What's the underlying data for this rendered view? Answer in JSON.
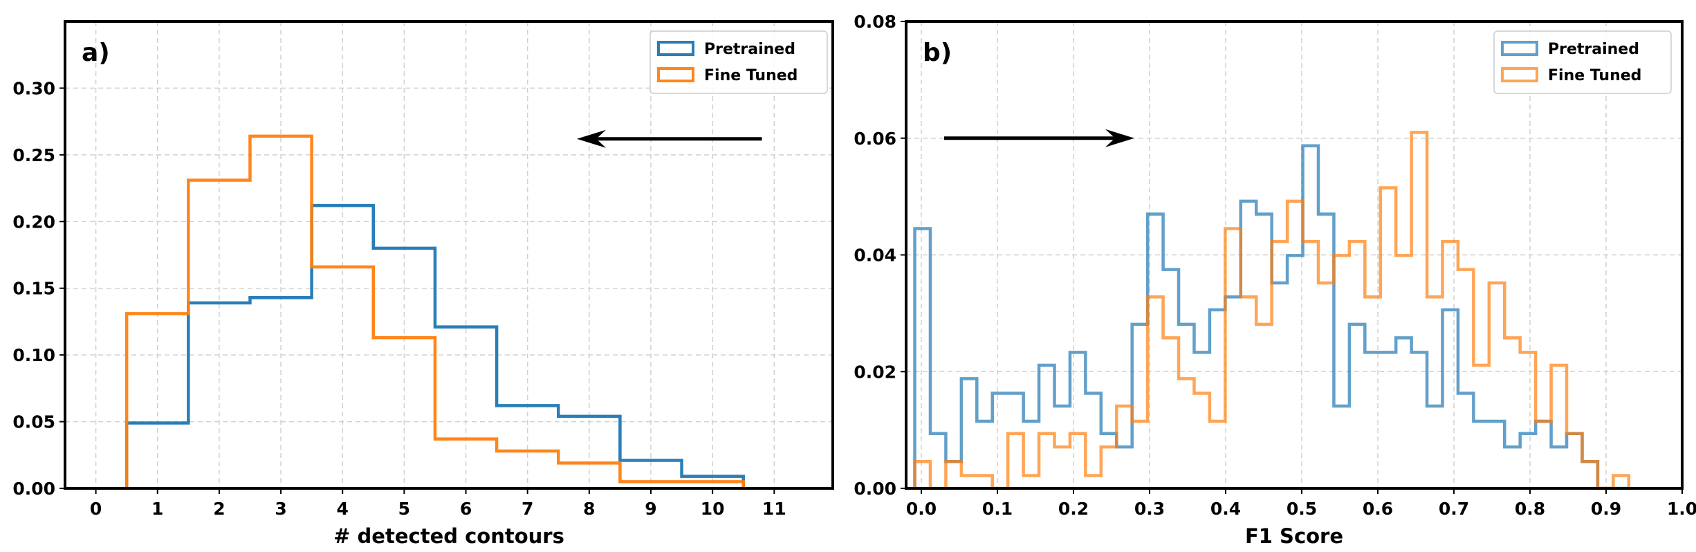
{
  "chart_data": [
    {
      "type": "histogram-step",
      "panel_label": "a)",
      "xlabel": "# detected contours",
      "ylabel": "",
      "xlim": [
        -0.5,
        11.95
      ],
      "ylim": [
        0,
        0.35
      ],
      "xticks": [
        0,
        1,
        2,
        3,
        4,
        5,
        6,
        7,
        8,
        9,
        10,
        11
      ],
      "xtick_labels": [
        "0",
        "1",
        "2",
        "3",
        "4",
        "5",
        "6",
        "7",
        "8",
        "9",
        "10",
        "11"
      ],
      "yticks": [
        0,
        0.05,
        0.1,
        0.15,
        0.2,
        0.25,
        0.3
      ],
      "ytick_labels": [
        "0.00",
        "0.05",
        "0.10",
        "0.15",
        "0.20",
        "0.25",
        "0.30"
      ],
      "grid": true,
      "legend_position": "top-right",
      "bin_start": 0.5,
      "bin_width": 1,
      "series": [
        {
          "name": "Pretrained",
          "color": "#1f77b4",
          "alpha": 0.95,
          "values": [
            0.049,
            0.139,
            0.143,
            0.212,
            0.18,
            0.121,
            0.062,
            0.054,
            0.021,
            0.009
          ]
        },
        {
          "name": "Fine Tuned",
          "color": "#ff7f0e",
          "alpha": 0.95,
          "values": [
            0.131,
            0.231,
            0.264,
            0.166,
            0.113,
            0.037,
            0.028,
            0.019,
            0.005,
            0.005
          ]
        }
      ],
      "annotation_arrow": {
        "from": [
          10.8,
          0.262
        ],
        "to": [
          7.8,
          0.262
        ],
        "direction": "left"
      }
    },
    {
      "type": "histogram-step",
      "panel_label": "b)",
      "xlabel": "F1 Score",
      "ylabel": "",
      "xlim": [
        -0.02,
        1.0
      ],
      "ylim": [
        0,
        0.08
      ],
      "xticks": [
        0,
        0.1,
        0.2,
        0.3,
        0.4,
        0.5,
        0.6,
        0.7,
        0.8,
        0.9,
        1.0
      ],
      "xtick_labels": [
        "0.0",
        "0.1",
        "0.2",
        "0.3",
        "0.4",
        "0.5",
        "0.6",
        "0.7",
        "0.8",
        "0.9",
        "1.0"
      ],
      "yticks": [
        0,
        0.02,
        0.04,
        0.06,
        0.08
      ],
      "ytick_labels": [
        "0.00",
        "0.02",
        "0.04",
        "0.06",
        "0.08"
      ],
      "grid": true,
      "legend_position": "top-right",
      "bin_start": -0.0086,
      "bin_width": 0.0204,
      "series": [
        {
          "name": "Pretrained",
          "color": "#1f77b4",
          "alpha": 0.7,
          "values": [
            0.0445,
            0.0094,
            0.0046,
            0.0188,
            0.0115,
            0.0163,
            0.0163,
            0.0115,
            0.0211,
            0.0141,
            0.0233,
            0.0163,
            0.0094,
            0.0071,
            0.0281,
            0.047,
            0.0375,
            0.0281,
            0.0233,
            0.0306,
            0.0328,
            0.0492,
            0.047,
            0.0352,
            0.0399,
            0.0587,
            0.047,
            0.0141,
            0.0281,
            0.0233,
            0.0233,
            0.0258,
            0.0233,
            0.0141,
            0.0306,
            0.0163,
            0.0115,
            0.0115,
            0.0071,
            0.0094,
            0.0115,
            0.0071,
            0.0094,
            0.0046,
            0,
            0
          ]
        },
        {
          "name": "Fine Tuned",
          "color": "#ff7f0e",
          "alpha": 0.7,
          "values": [
            0.0046,
            0,
            0.0046,
            0.0022,
            0.0022,
            0,
            0.0094,
            0.0022,
            0.0094,
            0.0071,
            0.0094,
            0.0022,
            0.0071,
            0.0141,
            0.0115,
            0.0328,
            0.0258,
            0.0188,
            0.0163,
            0.0115,
            0.0445,
            0.0328,
            0.0281,
            0.0423,
            0.0492,
            0.0423,
            0.0352,
            0.0399,
            0.0423,
            0.0328,
            0.0515,
            0.0399,
            0.061,
            0.0328,
            0.0423,
            0.0375,
            0.0211,
            0.0352,
            0.0258,
            0.0233,
            0.0115,
            0.0211,
            0.0094,
            0.0046,
            0,
            0.0022
          ]
        }
      ],
      "annotation_arrow": {
        "from": [
          0.03,
          0.06
        ],
        "to": [
          0.28,
          0.06
        ],
        "direction": "right"
      }
    }
  ]
}
